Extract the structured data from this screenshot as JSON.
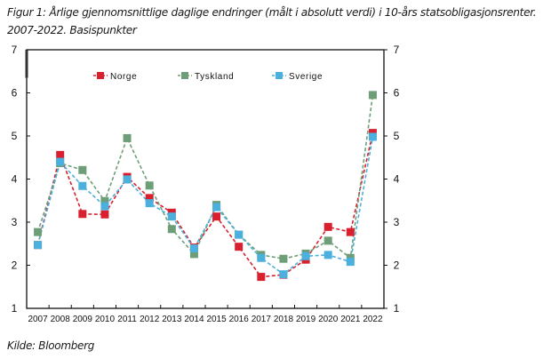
{
  "title_line1": "Figur 1: Årlige gjennomsnittlige daglige endringer (målt i absolutt verdi) i 10-års statsobligasjonsrenter.",
  "title_line2": "2007-2022. Basispunkter",
  "source": "Kilde: Bloomberg",
  "chart_data": {
    "type": "line",
    "title": "Figur 1: Årlige gjennomsnittlige daglige endringer (målt i absolutt verdi) i 10-års statsobligasjonsrenter. 2007-2022. Basispunkter",
    "xlabel": "",
    "ylabel": "Basispunkter",
    "categories": [
      "2007",
      "2008",
      "2009",
      "2010",
      "2011",
      "2012",
      "2013",
      "2014",
      "2015",
      "2016",
      "2017",
      "2018",
      "2019",
      "2020",
      "2021",
      "2022"
    ],
    "ylim": [
      1,
      7
    ],
    "yticks": [
      "1",
      "2",
      "3",
      "4",
      "5",
      "6",
      "7"
    ],
    "secondary_ylim": [
      1,
      7
    ],
    "grid": false,
    "legend_position": "top-inside",
    "series": [
      {
        "name": "Norge",
        "color": "#D8202F",
        "marker": "square",
        "line": "dashed",
        "values": [
          2.47,
          4.56,
          3.19,
          3.18,
          4.05,
          3.56,
          3.22,
          2.41,
          3.13,
          2.43,
          1.73,
          1.78,
          2.13,
          2.89,
          2.77,
          5.07
        ]
      },
      {
        "name": "Tyskland",
        "color": "#6E9E78",
        "marker": "square",
        "line": "dashed",
        "values": [
          2.77,
          4.37,
          4.21,
          3.49,
          4.95,
          3.85,
          2.84,
          2.26,
          3.4,
          2.71,
          2.24,
          2.15,
          2.27,
          2.57,
          2.17,
          5.95
        ]
      },
      {
        "name": "Sverige",
        "color": "#4BB0DD",
        "marker": "square",
        "line": "dashed",
        "values": [
          2.47,
          4.4,
          3.84,
          3.37,
          3.99,
          3.44,
          3.13,
          2.39,
          3.35,
          2.71,
          2.17,
          1.79,
          2.21,
          2.24,
          2.08,
          4.98
        ]
      }
    ]
  }
}
